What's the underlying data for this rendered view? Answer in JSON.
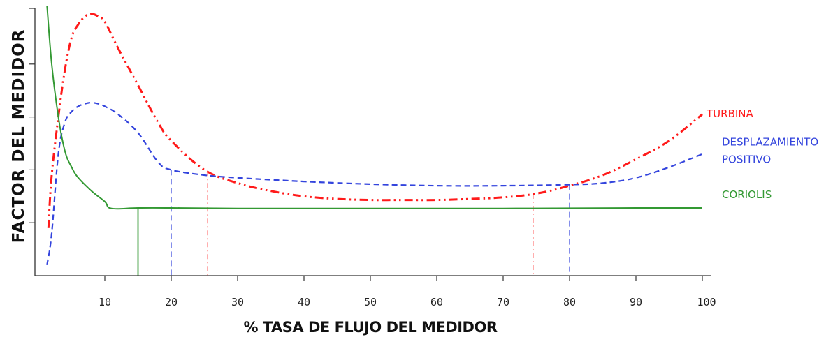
{
  "chart_data": {
    "type": "line",
    "title": "",
    "xlabel": "% TASA DE FLUJO DEL MEDIDOR",
    "ylabel": "FACTOR DEL MEDIDOR",
    "xlim": [
      0,
      100
    ],
    "ylim": [
      0,
      5
    ],
    "x_ticks": [
      10,
      20,
      30,
      40,
      50,
      60,
      70,
      80,
      90,
      100
    ],
    "y_ticks": [
      1,
      2,
      3,
      4,
      5
    ],
    "y_tick_labels_shown": false,
    "grid": false,
    "legend": "inline labels at right end of curves",
    "series": [
      {
        "name": "TURBINA",
        "color": "#ff1a1a",
        "style": "dash-dot-dot",
        "x": [
          1.5,
          2,
          3,
          4,
          5,
          6,
          7,
          8,
          9,
          10,
          12,
          15,
          18,
          20,
          25,
          30,
          35,
          40,
          45,
          50,
          55,
          60,
          65,
          70,
          75,
          80,
          85,
          90,
          95,
          100
        ],
        "values": [
          0.9,
          1.9,
          3.0,
          3.9,
          4.5,
          4.75,
          4.9,
          4.95,
          4.9,
          4.8,
          4.3,
          3.6,
          2.9,
          2.55,
          2.0,
          1.75,
          1.6,
          1.5,
          1.45,
          1.43,
          1.43,
          1.43,
          1.45,
          1.48,
          1.55,
          1.7,
          1.9,
          2.2,
          2.55,
          3.05
        ]
      },
      {
        "name": "DESPLAZAMIENTO POSITIVO",
        "color": "#3344dd",
        "style": "dashed",
        "x": [
          1.3,
          2,
          3,
          4,
          5,
          6,
          7,
          8,
          9,
          10,
          12,
          15,
          18,
          20,
          25,
          30,
          40,
          50,
          60,
          70,
          80,
          85,
          90,
          95,
          100
        ],
        "values": [
          0.2,
          0.8,
          2.3,
          2.9,
          3.1,
          3.2,
          3.25,
          3.27,
          3.25,
          3.2,
          3.05,
          2.7,
          2.15,
          2.0,
          1.9,
          1.85,
          1.78,
          1.73,
          1.7,
          1.7,
          1.72,
          1.75,
          1.85,
          2.05,
          2.3
        ]
      },
      {
        "name": "CORIOLIS",
        "color": "#339933",
        "style": "solid",
        "x": [
          1.3,
          2,
          3,
          4,
          5,
          6,
          8,
          10,
          11,
          15,
          20,
          30,
          50,
          70,
          90,
          100
        ],
        "values": [
          5.1,
          4.0,
          3.0,
          2.35,
          2.05,
          1.85,
          1.6,
          1.4,
          1.27,
          1.28,
          1.28,
          1.27,
          1.27,
          1.27,
          1.28,
          1.28
        ]
      }
    ],
    "reference_lines": [
      {
        "x": 15,
        "series": "CORIOLIS",
        "color": "#339933",
        "style": "solid"
      },
      {
        "x": 20,
        "series": "DESPLAZAMIENTO POSITIVO",
        "color": "#3344dd",
        "style": "dashed"
      },
      {
        "x": 25.5,
        "series": "TURBINA",
        "color": "#ff1a1a",
        "style": "dash-dot"
      },
      {
        "x": 74.5,
        "series": "TURBINA",
        "color": "#ff1a1a",
        "style": "dash-dot"
      },
      {
        "x": 80,
        "series": "DESPLAZAMIENTO POSITIVO",
        "color": "#3344dd",
        "style": "dashed"
      }
    ],
    "labels": [
      {
        "lines": [
          "TURBINA"
        ],
        "series": "TURBINA",
        "color": "#ff1a1a"
      },
      {
        "lines": [
          "DESPLAZAMIENTO",
          "POSITIVO"
        ],
        "series": "DESPLAZAMIENTO POSITIVO",
        "color": "#3344dd"
      },
      {
        "lines": [
          "CORIOLIS"
        ],
        "series": "CORIOLIS",
        "color": "#339933"
      }
    ]
  }
}
